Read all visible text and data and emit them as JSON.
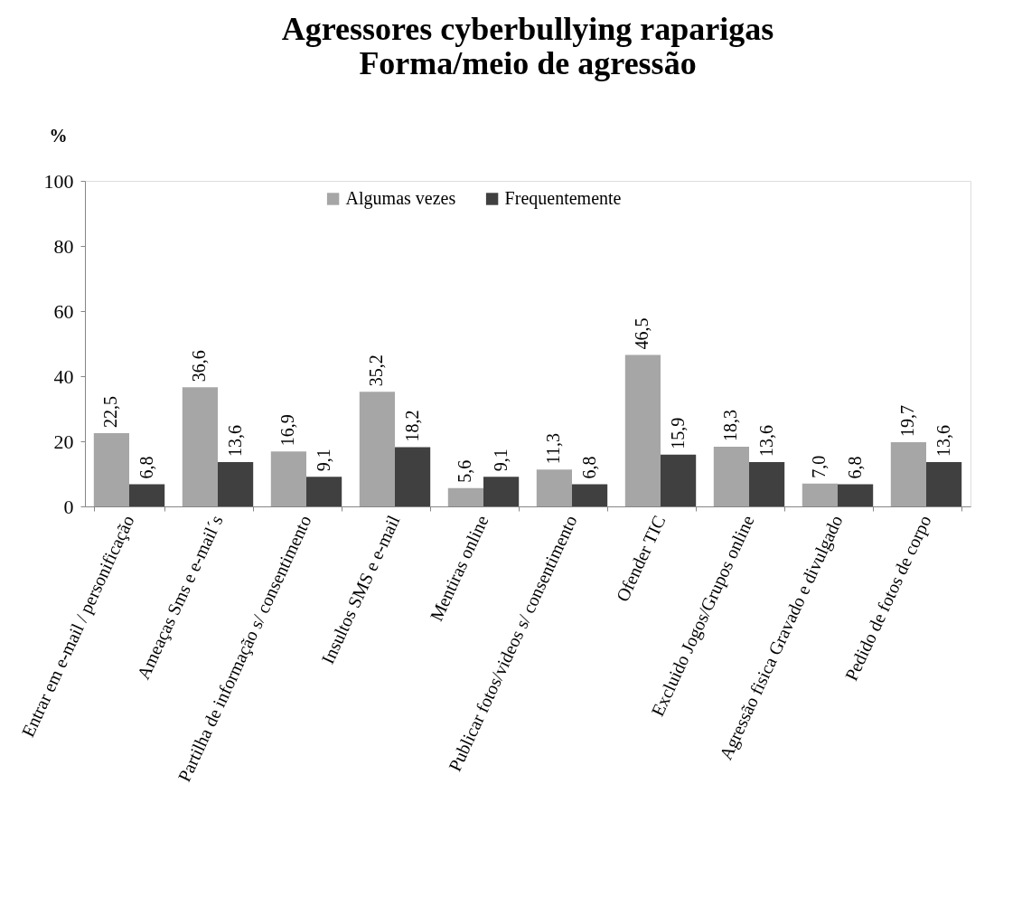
{
  "chart_data": {
    "type": "bar",
    "title": [
      "Agressores cyberbullying raparigas",
      "Forma/meio de agressão"
    ],
    "ylabel": "%",
    "categories": [
      "Entrar em e-mail / personificação",
      "Ameaças Sms e e-mail´s",
      "Partilha de informação s/ consentimento",
      "Insultos SMS e e-mail",
      "Mentiras online",
      "Publicar fotos/videos  s/ consentimento",
      "Ofender TIC",
      "Excluido Jogos/Grupos online",
      "Agressão fisica Gravado e divulgado",
      "Pedido de fotos de corpo"
    ],
    "series": [
      {
        "name": "Algumas vezes",
        "color": "#a6a6a6",
        "values": [
          22.5,
          36.6,
          16.9,
          35.2,
          5.6,
          11.3,
          46.5,
          18.3,
          7.0,
          19.7
        ],
        "value_labels": [
          "22,5",
          "36,6",
          "16,9",
          "35,2",
          "5,6",
          "11,3",
          "46,5",
          "18,3",
          "7,0",
          "19,7"
        ]
      },
      {
        "name": "Frequentemente",
        "color": "#404040",
        "values": [
          6.8,
          13.6,
          9.1,
          18.2,
          9.1,
          6.8,
          15.9,
          13.6,
          6.8,
          13.6
        ],
        "value_labels": [
          "6,8",
          "13,6",
          "9,1",
          "18,2",
          "9,1",
          "6,8",
          "15,9",
          "13,6",
          "6,8",
          "13,6"
        ]
      }
    ],
    "ylim": [
      0,
      100
    ],
    "yticks": [
      0,
      20,
      40,
      60,
      80,
      100
    ],
    "grid": false,
    "legend": "top"
  }
}
